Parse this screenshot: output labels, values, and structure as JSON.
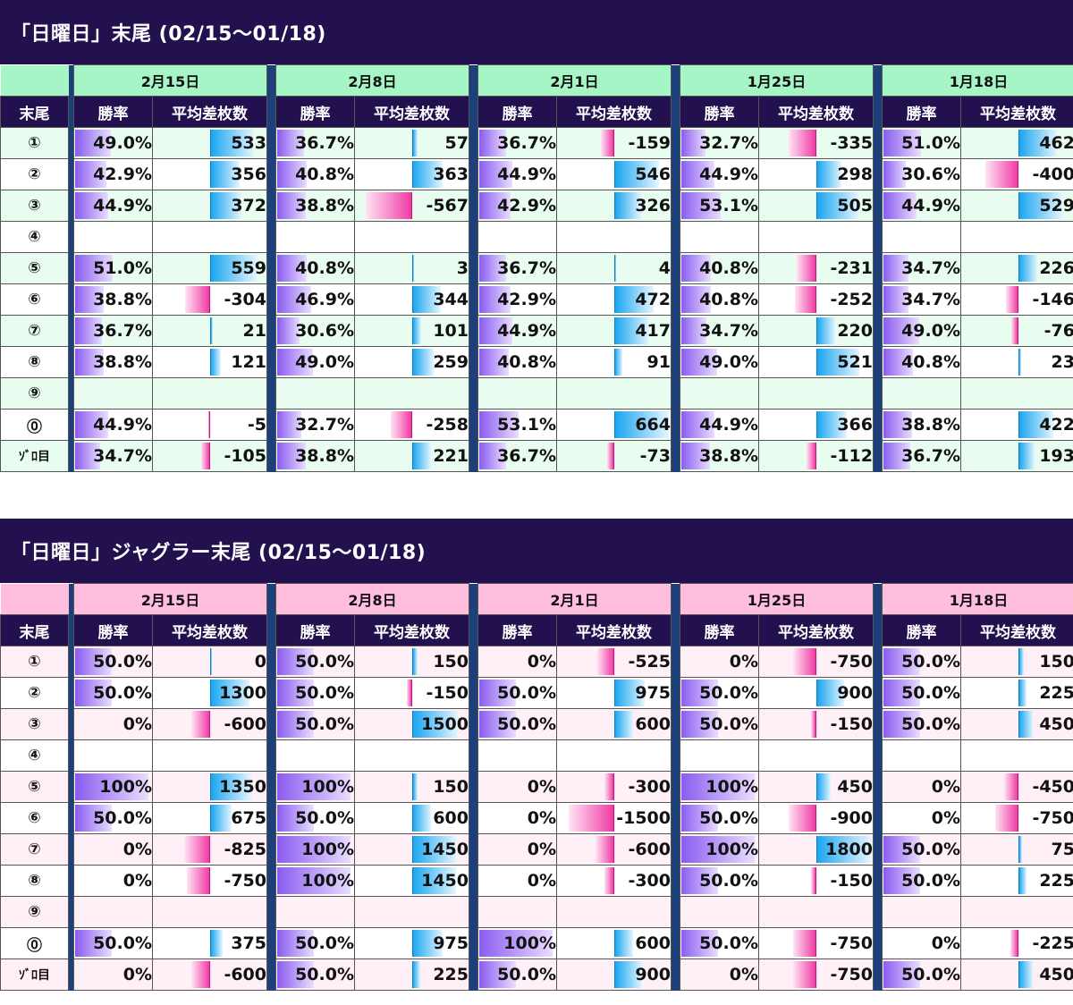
{
  "colors": {
    "title_bg": "#22104f",
    "gap": "#1d3f7a",
    "table1_head": "#a6f5c6",
    "table1_stripe": "#e8fcef",
    "table2_head": "#ffbedd",
    "table2_stripe": "#fff0f7",
    "rate_bar": "#8a5cf0",
    "diff_positive": "#1ba6f0",
    "diff_negative": "#f03ba5"
  },
  "headers": {
    "end": "末尾",
    "rate": "勝率",
    "diff": "平均差枚数"
  },
  "tables": [
    {
      "title": "「日曜日」末尾 (02/15〜01/18)",
      "dates": [
        "2月15日",
        "2月8日",
        "2月1日",
        "1月25日",
        "1月18日"
      ],
      "rows": [
        {
          "label": "①",
          "cells": [
            [
              "49.0%",
              533
            ],
            [
              "36.7%",
              57
            ],
            [
              "36.7%",
              -159
            ],
            [
              "32.7%",
              -335
            ],
            [
              "51.0%",
              462
            ]
          ]
        },
        {
          "label": "②",
          "cells": [
            [
              "42.9%",
              356
            ],
            [
              "40.8%",
              363
            ],
            [
              "44.9%",
              546
            ],
            [
              "44.9%",
              298
            ],
            [
              "30.6%",
              -400
            ]
          ]
        },
        {
          "label": "③",
          "cells": [
            [
              "44.9%",
              372
            ],
            [
              "38.8%",
              -567
            ],
            [
              "42.9%",
              326
            ],
            [
              "53.1%",
              505
            ],
            [
              "44.9%",
              529
            ]
          ]
        },
        {
          "label": "④",
          "cells": [
            [
              "",
              null
            ],
            [
              "",
              null
            ],
            [
              "",
              null
            ],
            [
              "",
              null
            ],
            [
              "",
              null
            ]
          ]
        },
        {
          "label": "⑤",
          "cells": [
            [
              "51.0%",
              559
            ],
            [
              "40.8%",
              3
            ],
            [
              "36.7%",
              4
            ],
            [
              "40.8%",
              -231
            ],
            [
              "34.7%",
              226
            ]
          ]
        },
        {
          "label": "⑥",
          "cells": [
            [
              "38.8%",
              -304
            ],
            [
              "46.9%",
              344
            ],
            [
              "42.9%",
              472
            ],
            [
              "40.8%",
              -252
            ],
            [
              "34.7%",
              -146
            ]
          ]
        },
        {
          "label": "⑦",
          "cells": [
            [
              "36.7%",
              21
            ],
            [
              "30.6%",
              101
            ],
            [
              "44.9%",
              417
            ],
            [
              "34.7%",
              220
            ],
            [
              "49.0%",
              -76
            ]
          ]
        },
        {
          "label": "⑧",
          "cells": [
            [
              "38.8%",
              121
            ],
            [
              "49.0%",
              259
            ],
            [
              "40.8%",
              91
            ],
            [
              "49.0%",
              521
            ],
            [
              "40.8%",
              23
            ]
          ]
        },
        {
          "label": "⑨",
          "cells": [
            [
              "",
              null
            ],
            [
              "",
              null
            ],
            [
              "",
              null
            ],
            [
              "",
              null
            ],
            [
              "",
              null
            ]
          ]
        },
        {
          "label": "⓪",
          "cells": [
            [
              "44.9%",
              -5
            ],
            [
              "32.7%",
              -258
            ],
            [
              "53.1%",
              664
            ],
            [
              "44.9%",
              366
            ],
            [
              "38.8%",
              422
            ]
          ]
        },
        {
          "label": "ｿﾞﾛ目",
          "cells": [
            [
              "34.7%",
              -105
            ],
            [
              "38.8%",
              221
            ],
            [
              "36.7%",
              -73
            ],
            [
              "38.8%",
              -112
            ],
            [
              "36.7%",
              193
            ]
          ]
        }
      ]
    },
    {
      "title": "「日曜日」ジャグラー末尾 (02/15〜01/18)",
      "dates": [
        "2月15日",
        "2月8日",
        "2月1日",
        "1月25日",
        "1月18日"
      ],
      "rows": [
        {
          "label": "①",
          "cells": [
            [
              "50.0%",
              0
            ],
            [
              "50.0%",
              150
            ],
            [
              "0%",
              -525
            ],
            [
              "0%",
              -750
            ],
            [
              "50.0%",
              150
            ]
          ]
        },
        {
          "label": "②",
          "cells": [
            [
              "50.0%",
              1300
            ],
            [
              "50.0%",
              -150
            ],
            [
              "50.0%",
              975
            ],
            [
              "50.0%",
              900
            ],
            [
              "50.0%",
              225
            ]
          ]
        },
        {
          "label": "③",
          "cells": [
            [
              "0%",
              -600
            ],
            [
              "50.0%",
              1500
            ],
            [
              "50.0%",
              600
            ],
            [
              "50.0%",
              -150
            ],
            [
              "50.0%",
              450
            ]
          ]
        },
        {
          "label": "④",
          "cells": [
            [
              "",
              null
            ],
            [
              "",
              null
            ],
            [
              "",
              null
            ],
            [
              "",
              null
            ],
            [
              "",
              null
            ]
          ]
        },
        {
          "label": "⑤",
          "cells": [
            [
              "100%",
              1350
            ],
            [
              "100%",
              150
            ],
            [
              "0%",
              -300
            ],
            [
              "100%",
              450
            ],
            [
              "0%",
              -450
            ]
          ]
        },
        {
          "label": "⑥",
          "cells": [
            [
              "50.0%",
              675
            ],
            [
              "50.0%",
              600
            ],
            [
              "0%",
              -1500
            ],
            [
              "50.0%",
              -900
            ],
            [
              "0%",
              -750
            ]
          ]
        },
        {
          "label": "⑦",
          "cells": [
            [
              "0%",
              -825
            ],
            [
              "100%",
              1450
            ],
            [
              "0%",
              -600
            ],
            [
              "100%",
              1800
            ],
            [
              "50.0%",
              75
            ]
          ]
        },
        {
          "label": "⑧",
          "cells": [
            [
              "0%",
              -750
            ],
            [
              "100%",
              1450
            ],
            [
              "0%",
              -300
            ],
            [
              "50.0%",
              -150
            ],
            [
              "50.0%",
              225
            ]
          ]
        },
        {
          "label": "⑨",
          "cells": [
            [
              "",
              null
            ],
            [
              "",
              null
            ],
            [
              "",
              null
            ],
            [
              "",
              null
            ],
            [
              "",
              null
            ]
          ]
        },
        {
          "label": "⓪",
          "cells": [
            [
              "50.0%",
              375
            ],
            [
              "50.0%",
              975
            ],
            [
              "100%",
              600
            ],
            [
              "50.0%",
              -750
            ],
            [
              "0%",
              -225
            ]
          ]
        },
        {
          "label": "ｿﾞﾛ目",
          "cells": [
            [
              "0%",
              -600
            ],
            [
              "50.0%",
              225
            ],
            [
              "50.0%",
              900
            ],
            [
              "0%",
              -750
            ],
            [
              "50.0%",
              450
            ]
          ]
        }
      ]
    }
  ]
}
